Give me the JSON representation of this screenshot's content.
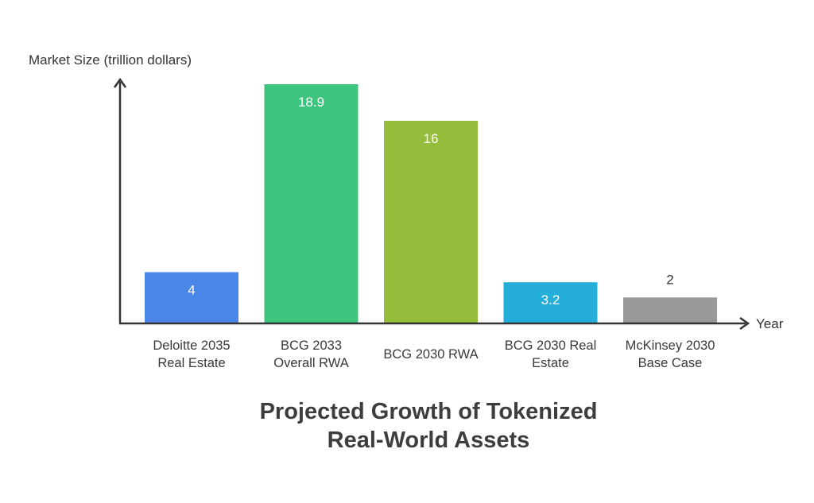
{
  "chart_data": {
    "type": "bar",
    "title_lines": [
      "Projected Growth of Tokenized",
      "Real-World Assets"
    ],
    "ylabel": "Market Size (trillion dollars)",
    "xlabel": "Year",
    "ylim": [
      0,
      18.9
    ],
    "grid": false,
    "categories": [
      [
        "Deloitte 2035",
        "Real Estate"
      ],
      [
        "BCG 2033",
        "Overall RWA"
      ],
      [
        "BCG 2030 RWA"
      ],
      [
        "BCG 2030 Real",
        "Estate"
      ],
      [
        "McKinsey 2030",
        "Base Case"
      ]
    ],
    "values": [
      4,
      18.9,
      16,
      3.2,
      2
    ],
    "value_labels": [
      "4",
      "18.9",
      "16",
      "3.2",
      "2"
    ],
    "colors": [
      "#4a86e8",
      "#3dc47e",
      "#93bd3b",
      "#24aed9",
      "#999999"
    ]
  }
}
